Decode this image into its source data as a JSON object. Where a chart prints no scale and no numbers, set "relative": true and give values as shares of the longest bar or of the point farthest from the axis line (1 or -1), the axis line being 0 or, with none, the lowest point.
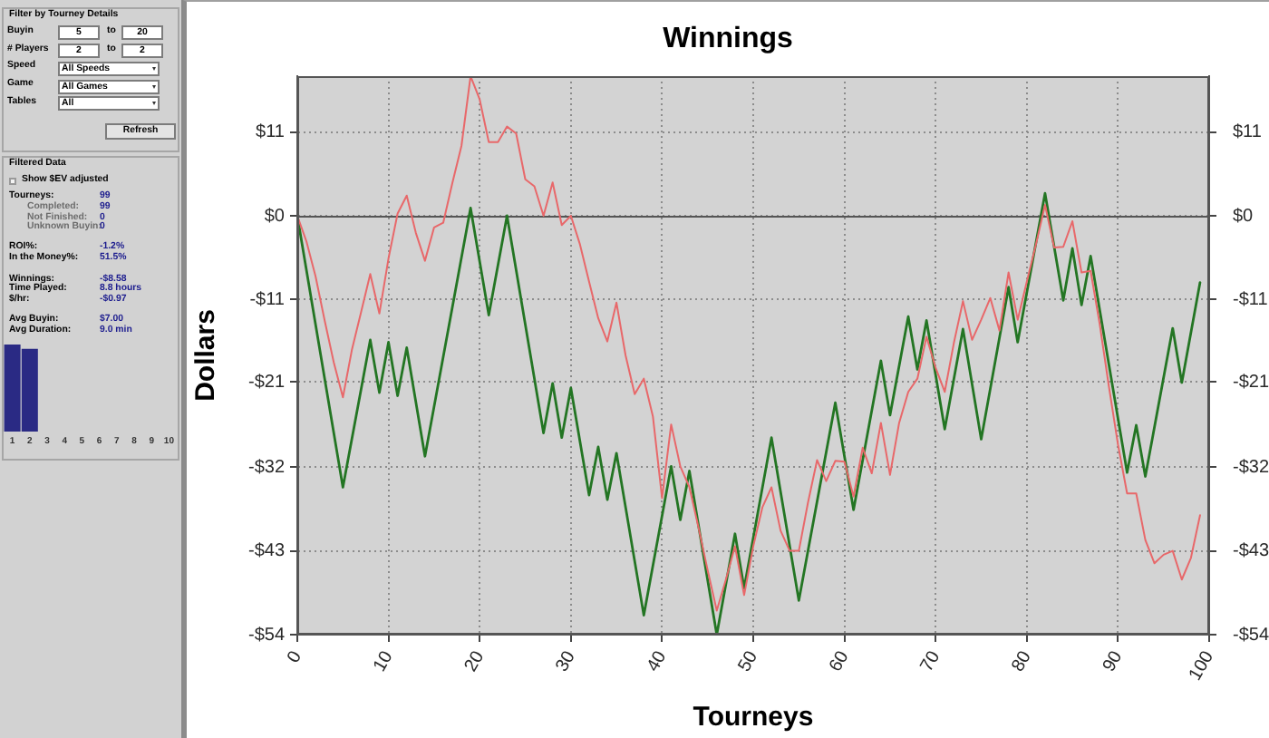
{
  "chart_data": [
    {
      "type": "other",
      "title": "Filter by Tourney Details",
      "annotations": [
        "Buyin",
        "5",
        "to",
        "20",
        "# Players",
        "2",
        "to",
        "2",
        "Speed",
        "All Speeds",
        "Game",
        "All Games",
        "Tables",
        "All",
        "Refresh"
      ]
    },
    {
      "type": "other",
      "title": "Filtered Data",
      "annotations": [
        "Show $EV adjusted",
        "Tourneys:",
        "99",
        "Completed:",
        "99",
        "Not Finished:",
        "0",
        "Unknown Buyin:",
        "0",
        "ROI%:",
        "-1.2%",
        "In the Money%:",
        "51.5%",
        "Winnings:",
        "-$8.58",
        "Time Played:",
        "8.8 hours",
        "$/hr:",
        "-$0.97",
        "Avg Buyin:",
        "$7.00",
        "Avg Duration:",
        "9.0 min"
      ]
    },
    {
      "type": "bar",
      "categories": [
        "1",
        "2",
        "3",
        "4",
        "5",
        "6",
        "7",
        "8",
        "9",
        "10"
      ],
      "values": [
        1,
        0.95,
        0,
        0,
        0,
        0,
        0,
        0,
        0,
        0
      ],
      "color": "#2a2a84",
      "relative": true
    },
    {
      "type": "line",
      "title": "Winnings",
      "xlabel": "Tourneys",
      "ylabel": "Dollars",
      "xlim": [
        0,
        100
      ],
      "xticks": [
        0,
        10,
        20,
        30,
        40,
        50,
        60,
        70,
        80,
        90,
        100
      ],
      "ylim": [
        -54,
        18
      ],
      "yticks": [
        {
          "value": 10.8,
          "label": "$11"
        },
        {
          "value": 0,
          "label": "$0"
        },
        {
          "value": -10.8,
          "label": "-$11"
        },
        {
          "value": -21.4,
          "label": "-$21"
        },
        {
          "value": -32.4,
          "label": "-$32"
        },
        {
          "value": -43.2,
          "label": "-$43"
        },
        {
          "value": -54,
          "label": "-$54"
        }
      ],
      "y2lim": [
        -54,
        18
      ],
      "y2ticks": [
        {
          "value": 10.8,
          "label": "$11"
        },
        {
          "value": 0,
          "label": "$0"
        },
        {
          "value": -10.8,
          "label": "-$11"
        },
        {
          "value": -21.4,
          "label": "-$21"
        },
        {
          "value": -32.4,
          "label": "-$32"
        },
        {
          "value": -43.2,
          "label": "-$43"
        },
        {
          "value": -54,
          "label": "-$54"
        }
      ],
      "grid": true,
      "ref_lines": [
        {
          "axis": "y",
          "value": 0,
          "color": "#555555"
        }
      ],
      "series": [
        {
          "color": "#e8686a",
          "x": [
            0,
            1,
            2,
            3,
            4,
            5,
            6,
            7,
            8,
            9,
            10,
            11,
            12,
            13,
            14,
            15,
            16,
            17,
            18,
            19,
            20,
            21,
            22,
            23,
            24,
            25,
            26,
            27,
            28,
            29,
            30,
            31,
            32,
            33,
            34,
            35,
            36,
            37,
            38,
            39,
            40,
            41,
            42,
            43,
            44,
            45,
            46,
            47,
            48,
            49,
            50,
            51,
            52,
            53,
            54,
            55,
            56,
            57,
            58,
            59,
            60,
            61,
            62,
            63,
            64,
            65,
            66,
            67,
            68,
            69,
            70,
            71,
            72,
            73,
            74,
            75,
            76,
            77,
            78,
            79,
            80,
            81,
            82,
            83,
            84,
            85,
            86,
            87,
            88,
            89,
            90,
            91,
            92,
            93,
            94,
            95,
            96,
            97,
            98,
            99
          ],
          "values": [
            0,
            -3.3,
            -7.8,
            -13.5,
            -18.9,
            -23.4,
            -17.2,
            -12.4,
            -7.5,
            -12.6,
            -5.5,
            0.3,
            2.6,
            -2.2,
            -5.8,
            -1.5,
            -0.9,
            4.2,
            9,
            18,
            15,
            9.5,
            9.5,
            11.5,
            10.6,
            4.7,
            3.8,
            0,
            4.3,
            -1.2,
            0,
            -3.7,
            -8.5,
            -13.2,
            -16.2,
            -11.2,
            -18,
            -23,
            -21,
            -25.9,
            -36.4,
            -26.9,
            -32.3,
            -35,
            -40.2,
            -45.7,
            -50.9,
            -46.9,
            -42.6,
            -48.9,
            -42.6,
            -37.6,
            -35,
            -40.6,
            -43.2,
            -43.2,
            -37,
            -31.5,
            -34.2,
            -31.6,
            -31.7,
            -36.2,
            -29.9,
            -33.2,
            -26.7,
            -33.4,
            -26.7,
            -22.7,
            -21,
            -15.6,
            -19.6,
            -22.7,
            -16.4,
            -11,
            -16,
            -13.4,
            -10.6,
            -14.8,
            -7.3,
            -13.4,
            -8.5,
            -3.7,
            1.4,
            -4.1,
            -4,
            -0.7,
            -7.3,
            -7.1,
            -14,
            -22,
            -29.5,
            -35.8,
            -35.8,
            -41.8,
            -44.8,
            -43.7,
            -43.2,
            -46.9,
            -44.1,
            -38.6
          ]
        },
        {
          "color": "#237523",
          "x": [
            0,
            5,
            8,
            9,
            10,
            11,
            12,
            14,
            19,
            21,
            23,
            27,
            28,
            29,
            30,
            32,
            33,
            34,
            35,
            38,
            41,
            42,
            43,
            46,
            48,
            49,
            52,
            55,
            59,
            61,
            64,
            65,
            67,
            68,
            69,
            71,
            73,
            75,
            78,
            79,
            82,
            84,
            85,
            86,
            87,
            91,
            92,
            93,
            96,
            97,
            99
          ],
          "values": [
            0,
            -35,
            -16,
            -22.8,
            -16.3,
            -23.2,
            -17,
            -31,
            1,
            -12.8,
            0,
            -28,
            -21.6,
            -28.6,
            -22.2,
            -36,
            -29.8,
            -36.6,
            -30.6,
            -51.5,
            -32.3,
            -39.2,
            -32.9,
            -54,
            -41,
            -48,
            -28.6,
            -49.6,
            -24.1,
            -37.9,
            -18.7,
            -25.7,
            -13,
            -19.8,
            -13.5,
            -27.5,
            -14.6,
            -28.8,
            -9.2,
            -16.3,
            2.9,
            -10.9,
            -4.2,
            -11.5,
            -5.2,
            -33.1,
            -27,
            -33.6,
            -14.5,
            -21.5,
            -8.6
          ]
        }
      ]
    }
  ]
}
